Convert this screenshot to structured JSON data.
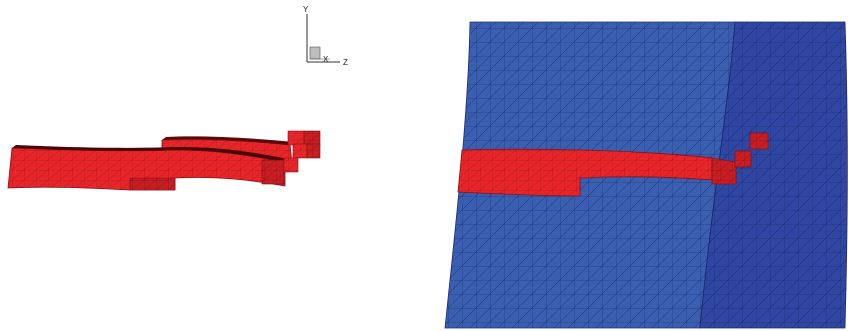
{
  "axis_triad": {
    "y_label": "Y",
    "x_label": "X",
    "z_label": "Z"
  },
  "colors": {
    "crack": "#e8262a",
    "crack_dark": "#b51a1e",
    "mesh_front": "#3a5fb0",
    "mesh_side": "#2f46a3",
    "mesh_line": "#1c2c6e",
    "crack_line": "#8a1015"
  }
}
